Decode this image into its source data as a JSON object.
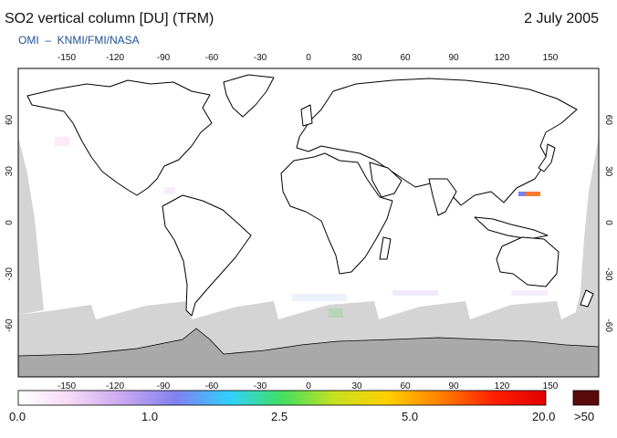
{
  "header": {
    "title": "SO2 vertical column [DU] (TRM)",
    "date": "2 July 2005",
    "credit": "OMI  –  KNMI/FMI/NASA"
  },
  "map": {
    "projection": "equirectangular",
    "lon_ticks": [
      "-150",
      "-120",
      "-90",
      "-60",
      "-30",
      "0",
      "30",
      "60",
      "90",
      "120",
      "150"
    ],
    "lat_ticks": [
      "60",
      "30",
      "0",
      "-30",
      "-60"
    ],
    "colors": {
      "ocean": "#ffffff",
      "no_data": "#d4d4d4",
      "antarctica": "#a9a9a9",
      "coastline": "#000000",
      "hotspot": "#ff7a2a"
    }
  },
  "legend": {
    "labels": [
      "0.0",
      "1.0",
      "2.5",
      "5.0",
      "20.0",
      ">50"
    ],
    "gradient_colors": [
      "#ffffff",
      "#f5d8f5",
      "#c8a6f0",
      "#8080f0",
      "#30d0ff",
      "#40e060",
      "#c8e020",
      "#ffd000",
      "#ff8000",
      "#ff2000",
      "#e00000"
    ],
    "overflow_color": "#5a0a0a"
  }
}
